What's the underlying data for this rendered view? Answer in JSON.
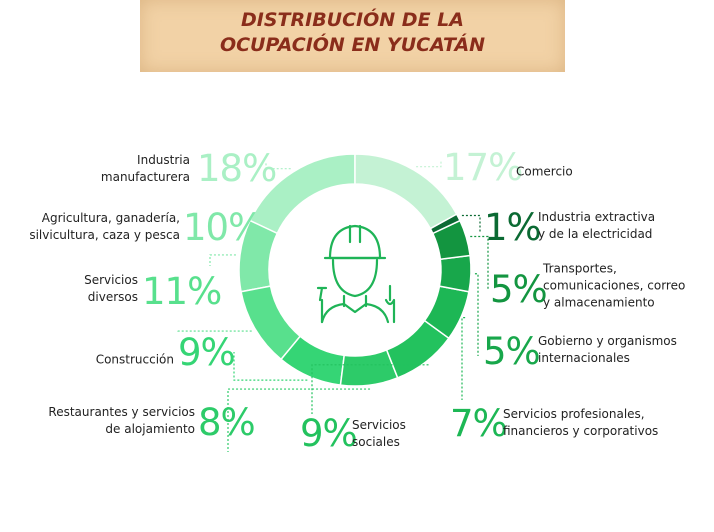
{
  "title": "DISTRIBUCIÓN DE LA\nOCUPACIÓN EN YUCATÁN",
  "chart_data": {
    "type": "pie",
    "categories": [
      "Comercio",
      "Industria extractiva\ny de la electricidad",
      "Transportes,\ncomunicaciones, correo\ny almacenamiento",
      "Gobierno y organismos\ninternacionales",
      "Servicios profesionales,\nfinancieros y corporativos",
      "Servicios\nsociales",
      "Restaurantes y servicios\nde alojamiento",
      "Construcción",
      "Servicios\ndiversos",
      "Agricultura, ganadería,\nsilvicultura, caza y pesca",
      "Industria\nmanufacturera"
    ],
    "values": [
      17,
      1,
      5,
      5,
      7,
      9,
      8,
      9,
      11,
      10,
      18
    ],
    "value_labels": [
      "17%",
      "1%",
      "5%",
      "5%",
      "7%",
      "9%",
      "8%",
      "9%",
      "11%",
      "10%",
      "18%"
    ],
    "colors": [
      "#c4f2d4",
      "#0b6a33",
      "#139540",
      "#18a74b",
      "#1db755",
      "#23c25e",
      "#2dcb69",
      "#35d575",
      "#58e08d",
      "#80e8a9",
      "#aaf0c5"
    ]
  }
}
